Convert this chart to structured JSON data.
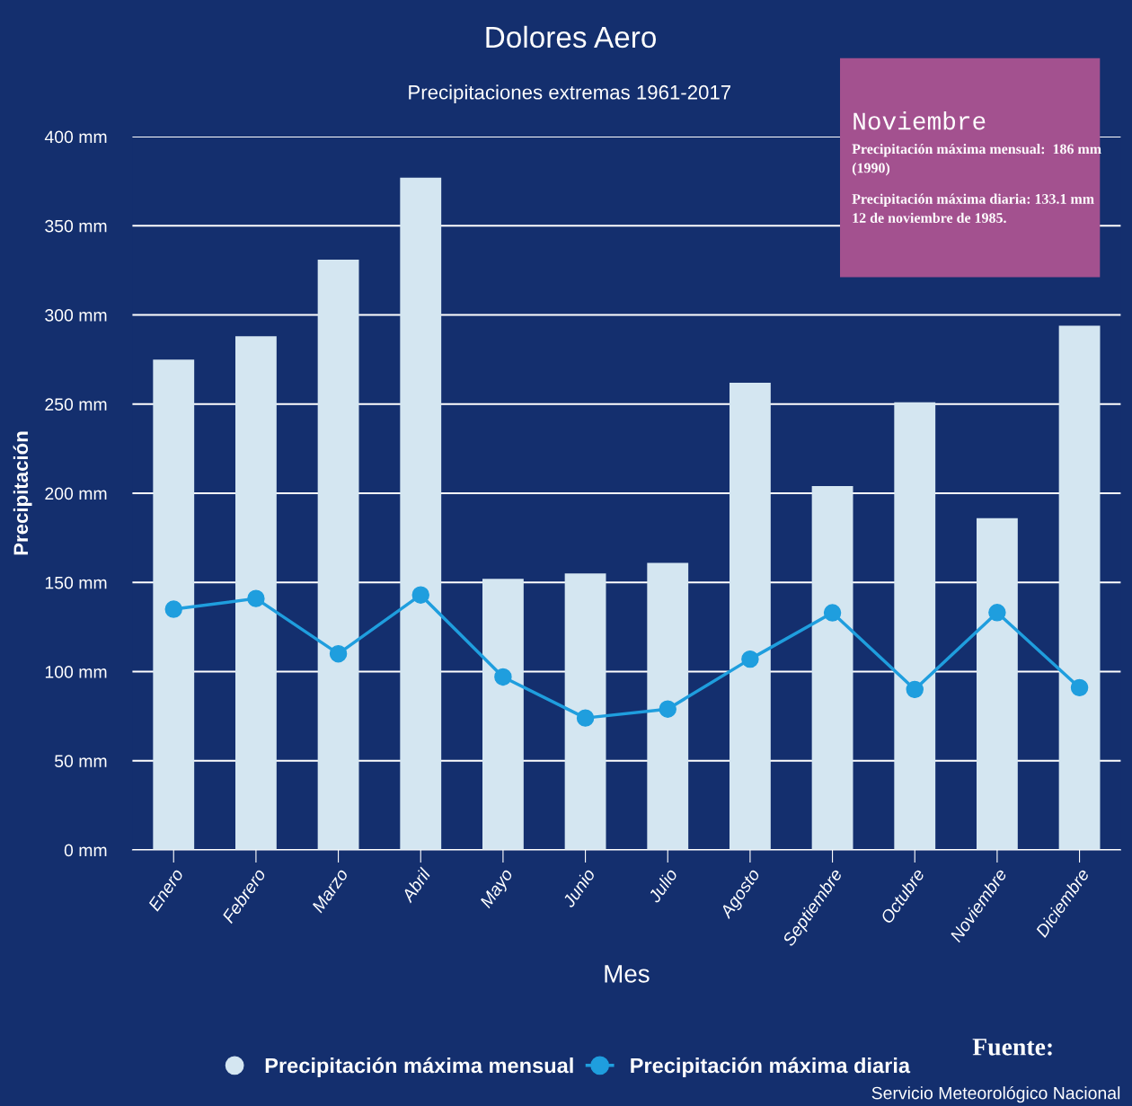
{
  "chart_data": {
    "type": "bar",
    "title": "Dolores Aero",
    "subtitle": "Precipitaciones extremas 1961-2017",
    "xlabel": "Mes",
    "ylabel": "Precipitación",
    "categories": [
      "Enero",
      "Febrero",
      "Marzo",
      "Abril",
      "Mayo",
      "Junio",
      "Julio",
      "Agosto",
      "Septiembre",
      "Octubre",
      "Noviembre",
      "Diciembre"
    ],
    "series": [
      {
        "name": "Precipitación máxima mensual",
        "color": "#d4e6f1",
        "values": [
          275,
          288,
          331,
          377,
          152,
          155,
          161,
          262,
          204,
          251,
          186,
          294
        ]
      },
      {
        "name": "Precipitación máxima diaria",
        "type": "line",
        "color": "#1f9ede",
        "marker": "circle",
        "values": [
          135,
          141,
          110,
          143,
          97,
          74,
          79,
          107,
          133,
          90,
          133.1,
          91
        ]
      }
    ],
    "ylim": [
      0,
      400
    ],
    "yticks": [
      {
        "value": 0,
        "label": "0 mm"
      },
      {
        "value": 50,
        "label": "50 mm"
      },
      {
        "value": 100,
        "label": "100 mm"
      },
      {
        "value": 150,
        "label": "150 mm"
      },
      {
        "value": 200,
        "label": "200 mm"
      },
      {
        "value": 250,
        "label": "250 mm"
      },
      {
        "value": 300,
        "label": "300 mm"
      },
      {
        "value": 350,
        "label": "350 mm"
      },
      {
        "value": 400,
        "label": "400 mm"
      }
    ],
    "grid": "y",
    "legend": "bottom",
    "annotations": [
      "Noviembre",
      "Precipitación máxima mensual:  186 mm (1990)",
      "Precipitación máxima diaria: 133.1 mm 12 de noviembre de 1985.",
      "Fuente:",
      "Servicio Meteorológico Nacional"
    ]
  }
}
